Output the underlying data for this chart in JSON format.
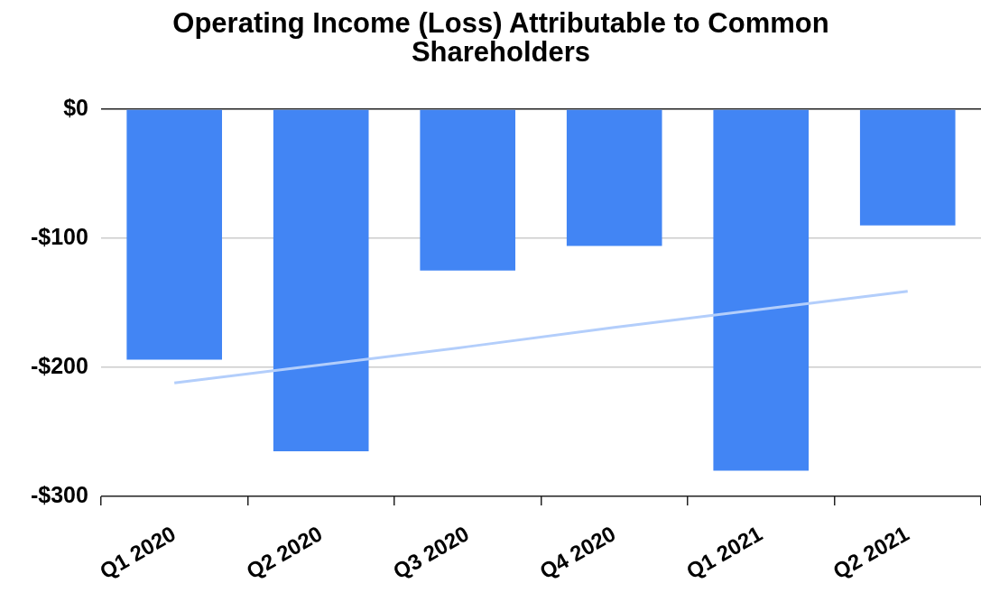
{
  "chart_data": {
    "type": "bar",
    "title": "Operating Income (Loss) Attributable to Common Shareholders",
    "categories": [
      "Q1 2020",
      "Q2 2020",
      "Q3 2020",
      "Q4 2020",
      "Q1 2021",
      "Q2 2021"
    ],
    "series": [
      {
        "color": "#4285f4",
        "values": [
          -194,
          -265,
          -125,
          -106,
          -280,
          -90
        ]
      },
      {
        "type": "line",
        "color": "#b3cefb",
        "values": [
          -212,
          -198,
          -184,
          -169,
          -155,
          -141
        ]
      }
    ],
    "ylim": [
      -300,
      0
    ],
    "yticks": [
      {
        "value": -300,
        "label": "-$300"
      },
      {
        "value": -200,
        "label": "-$200"
      },
      {
        "value": -100,
        "label": "-$100"
      },
      {
        "value": 0,
        "label": "$0"
      }
    ],
    "grid": "y",
    "legend": false,
    "marker": "none"
  }
}
